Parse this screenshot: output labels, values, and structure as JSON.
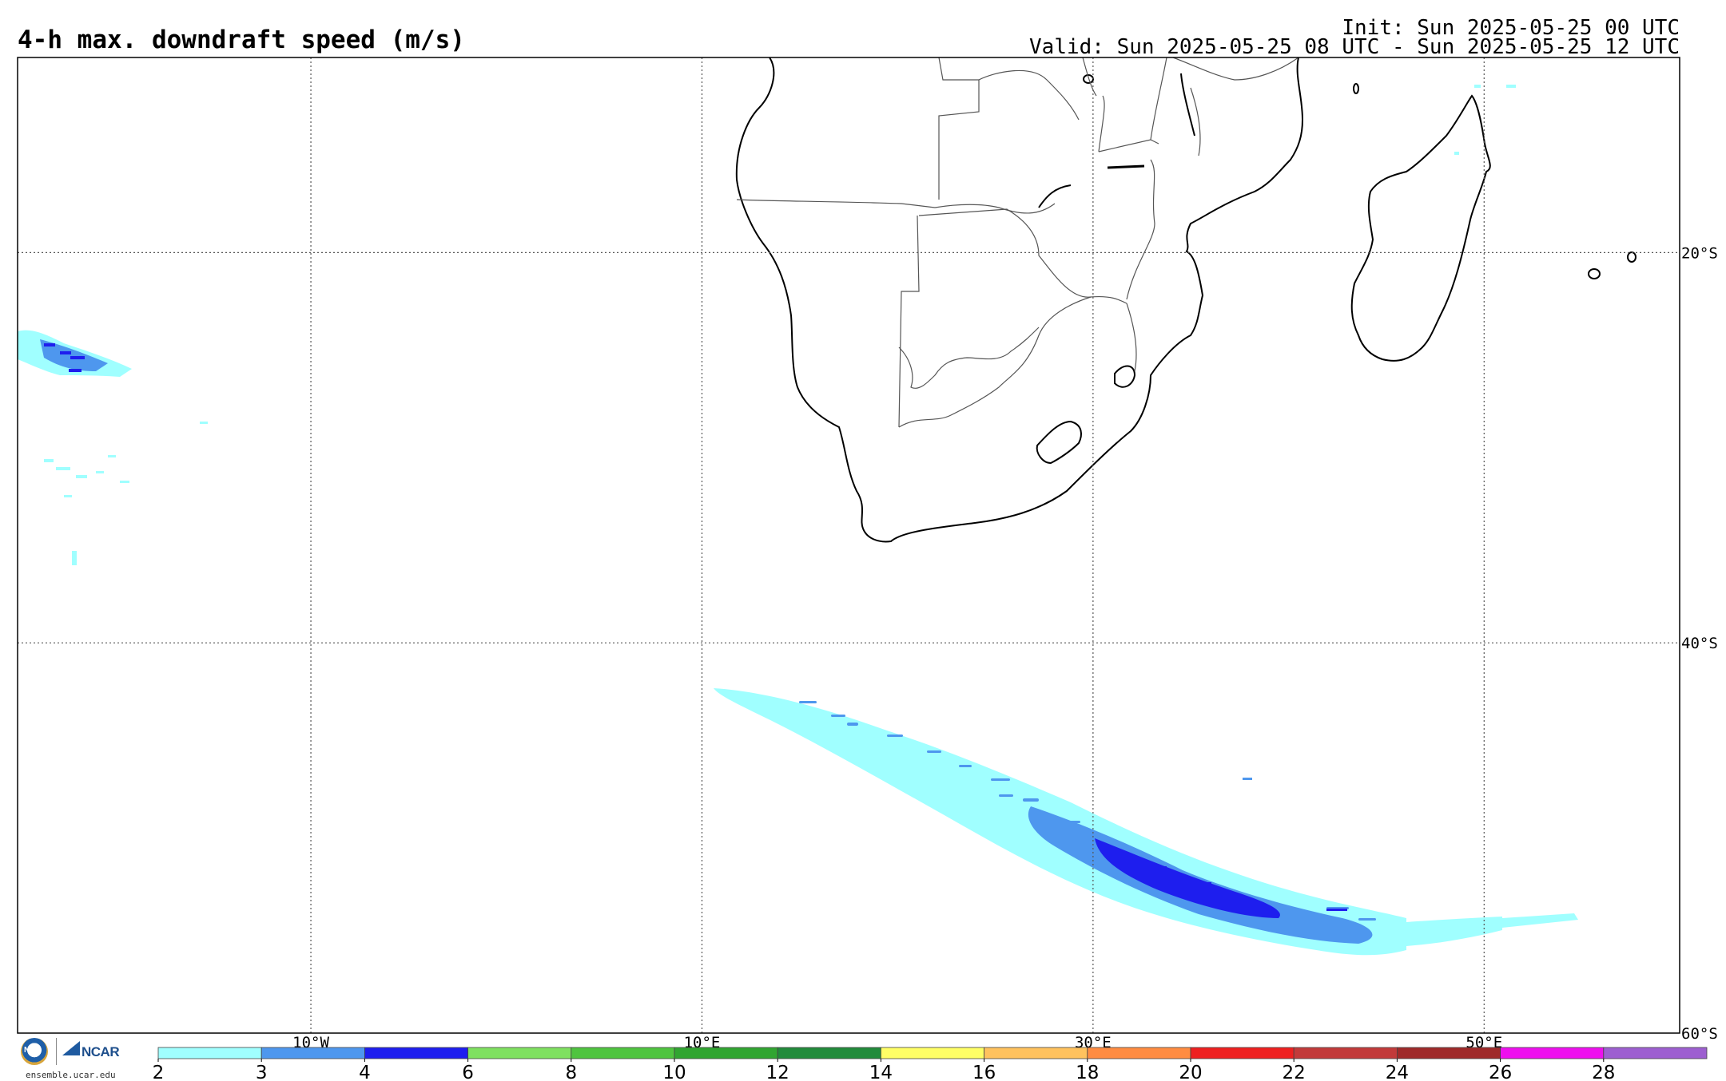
{
  "header": {
    "title": "4-h max. downdraft speed (m/s)",
    "init": "Init: Sun 2025-05-25 00 UTC",
    "valid": "Valid: Sun 2025-05-25 08 UTC - Sun 2025-05-25 12 UTC"
  },
  "map": {
    "projection": "cylindrical lat-lon",
    "lon_range": [
      -25,
      60
    ],
    "lat_range": [
      -60,
      -10
    ],
    "meridians": [
      {
        "lon": -10,
        "label": "10°W"
      },
      {
        "lon": 10,
        "label": "10°E"
      },
      {
        "lon": 30,
        "label": "30°E"
      },
      {
        "lon": 50,
        "label": "50°E"
      }
    ],
    "parallels": [
      {
        "lat": -20,
        "label": "20°S"
      },
      {
        "lat": -40,
        "label": "40°S"
      },
      {
        "lat": -60,
        "label": "60°S"
      }
    ],
    "region": "Southern Africa, Madagascar and South Atlantic / Southern Ocean",
    "features": [
      {
        "name": "downdraft-band-southern-ocean",
        "from": [
          10.5,
          -42.5
        ],
        "to": [
          50,
          -56
        ],
        "max_class": "4-6 m/s"
      },
      {
        "name": "downdraft-cluster-south-atlantic",
        "from": [
          -25,
          -23
        ],
        "to": [
          -19,
          -27
        ],
        "max_class": "4-6 m/s"
      }
    ]
  },
  "colorbar": {
    "ticks": [
      "2",
      "3",
      "4",
      "6",
      "8",
      "10",
      "12",
      "14",
      "16",
      "18",
      "20",
      "22",
      "24",
      "26",
      "28"
    ],
    "colors": [
      "#a0ffff",
      "#4e97ee",
      "#1e1eee",
      "#7fe060",
      "#4fc43f",
      "#31a531",
      "#228b3b",
      "#ffff66",
      "#ffc25e",
      "#ff8c42",
      "#ee2020",
      "#c23a3a",
      "#9f2a2a",
      "#ee10ee",
      "#9d5fd0"
    ]
  },
  "logos": {
    "nsf": "NSF",
    "ncar": "NCAR",
    "site": "ensemble.ucar.edu"
  }
}
